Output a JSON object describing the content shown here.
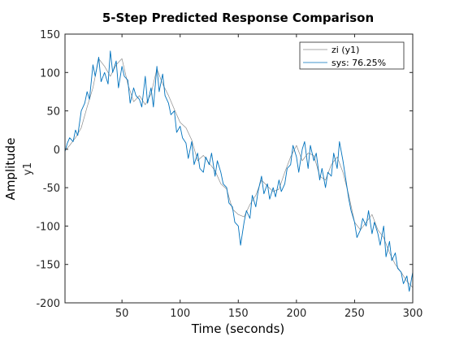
{
  "chart_data": {
    "type": "line",
    "title": "5-Step Predicted Response Comparison",
    "xlabel": "Time (seconds)",
    "ylabel": "Amplitude",
    "channel_label": "y1",
    "xlim": [
      1,
      300
    ],
    "ylim": [
      -200,
      150
    ],
    "xticks": [
      50,
      100,
      150,
      200,
      250,
      300
    ],
    "yticks": [
      150,
      100,
      50,
      0,
      -50,
      -100,
      -150,
      -200
    ],
    "legend_position": "top-right",
    "grid": false,
    "series": [
      {
        "name": "zi (y1)",
        "color": "#8c8c8c",
        "x": [
          1,
          5,
          10,
          15,
          20,
          25,
          30,
          35,
          40,
          45,
          50,
          55,
          60,
          65,
          70,
          75,
          80,
          85,
          90,
          95,
          100,
          105,
          110,
          115,
          120,
          125,
          130,
          135,
          140,
          145,
          150,
          155,
          160,
          165,
          170,
          175,
          180,
          185,
          190,
          195,
          200,
          205,
          210,
          215,
          220,
          225,
          230,
          235,
          240,
          245,
          250,
          255,
          260,
          265,
          270,
          275,
          280,
          285,
          290,
          295,
          300
        ],
        "y": [
          -2,
          5,
          15,
          28,
          55,
          80,
          118,
          108,
          95,
          110,
          118,
          85,
          62,
          70,
          58,
          72,
          105,
          85,
          70,
          52,
          35,
          28,
          12,
          -15,
          -8,
          -18,
          -28,
          -45,
          -52,
          -78,
          -85,
          -88,
          -72,
          -60,
          -40,
          -48,
          -55,
          -52,
          -30,
          -10,
          5,
          -15,
          -5,
          -8,
          -35,
          -40,
          -20,
          -10,
          -30,
          -60,
          -95,
          -105,
          -95,
          -85,
          -105,
          -115,
          -135,
          -150,
          -160,
          -172,
          -180
        ]
      },
      {
        "name": "sys: 76.25%",
        "color": "#0072bd",
        "x": [
          1,
          3,
          5,
          8,
          10,
          12,
          15,
          18,
          20,
          22,
          25,
          27,
          30,
          32,
          35,
          38,
          40,
          42,
          45,
          47,
          50,
          52,
          55,
          57,
          60,
          62,
          65,
          67,
          70,
          72,
          75,
          77,
          80,
          82,
          85,
          87,
          90,
          92,
          95,
          97,
          100,
          102,
          105,
          107,
          110,
          112,
          115,
          117,
          120,
          122,
          125,
          127,
          130,
          132,
          135,
          137,
          140,
          142,
          145,
          147,
          150,
          152,
          155,
          157,
          160,
          162,
          165,
          167,
          170,
          172,
          175,
          177,
          180,
          182,
          185,
          187,
          190,
          192,
          195,
          197,
          200,
          202,
          205,
          207,
          210,
          212,
          215,
          217,
          220,
          222,
          225,
          227,
          230,
          232,
          235,
          237,
          240,
          242,
          245,
          247,
          250,
          252,
          255,
          257,
          260,
          262,
          265,
          267,
          270,
          272,
          275,
          277,
          280,
          282,
          285,
          287,
          290,
          292,
          295,
          297,
          300
        ],
        "y": [
          -3,
          8,
          15,
          10,
          25,
          18,
          50,
          60,
          75,
          65,
          110,
          95,
          120,
          88,
          100,
          85,
          128,
          100,
          115,
          80,
          108,
          95,
          90,
          60,
          80,
          70,
          65,
          55,
          95,
          60,
          80,
          55,
          108,
          75,
          98,
          70,
          60,
          45,
          50,
          22,
          30,
          15,
          8,
          -12,
          10,
          -20,
          -5,
          -25,
          -30,
          -10,
          -20,
          -5,
          -35,
          -15,
          -30,
          -45,
          -50,
          -70,
          -75,
          -95,
          -100,
          -125,
          -95,
          -80,
          -90,
          -60,
          -75,
          -55,
          -35,
          -58,
          -45,
          -65,
          -50,
          -62,
          -40,
          -55,
          -45,
          -25,
          -20,
          5,
          -10,
          -30,
          0,
          10,
          -25,
          5,
          -15,
          -5,
          -40,
          -25,
          -50,
          -30,
          -35,
          -5,
          -25,
          10,
          -15,
          -35,
          -65,
          -80,
          -95,
          -115,
          -105,
          -90,
          -100,
          -80,
          -110,
          -95,
          -110,
          -125,
          -100,
          -140,
          -120,
          -145,
          -135,
          -155,
          -160,
          -175,
          -165,
          -185,
          -160
        ]
      }
    ]
  }
}
